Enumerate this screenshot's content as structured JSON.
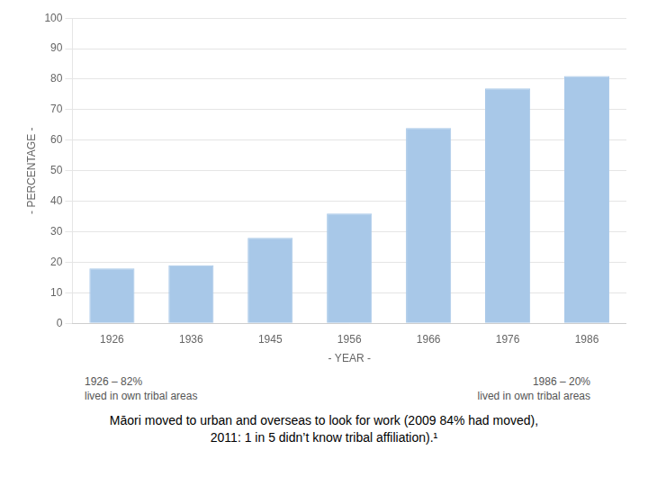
{
  "chart_data": {
    "type": "bar",
    "categories": [
      "1926",
      "1936",
      "1945",
      "1956",
      "1966",
      "1976",
      "1986"
    ],
    "values": [
      18,
      19,
      28,
      36,
      64,
      77,
      81
    ],
    "color": "#a8c8e8",
    "ylim": [
      0,
      100
    ],
    "yticks": [
      0,
      10,
      20,
      30,
      40,
      50,
      60,
      70,
      80,
      90,
      100
    ],
    "grid": true,
    "x_label": "- YEAR -",
    "y_label": "- PERCENTAGE -",
    "annotations": [
      [
        "1926 – 82%",
        "lived in own tribal areas"
      ],
      [
        "1986 – 20%",
        "lived in own tribal areas"
      ]
    ],
    "caption": [
      "Māori moved to urban and overseas to look for work (2009 84% had moved),",
      "2011: 1 in 5 didn’t know tribal affiliation).¹"
    ]
  }
}
